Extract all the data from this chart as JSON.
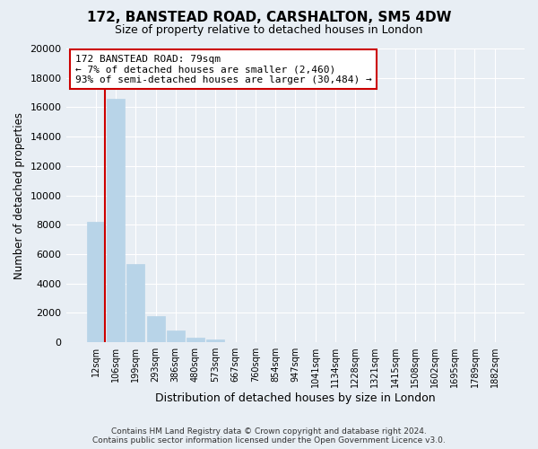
{
  "title": "172, BANSTEAD ROAD, CARSHALTON, SM5 4DW",
  "subtitle": "Size of property relative to detached houses in London",
  "xlabel": "Distribution of detached houses by size in London",
  "ylabel": "Number of detached properties",
  "bar_labels": [
    "12sqm",
    "106sqm",
    "199sqm",
    "293sqm",
    "386sqm",
    "480sqm",
    "573sqm",
    "667sqm",
    "760sqm",
    "854sqm",
    "947sqm",
    "1041sqm",
    "1134sqm",
    "1228sqm",
    "1321sqm",
    "1415sqm",
    "1508sqm",
    "1602sqm",
    "1695sqm",
    "1789sqm",
    "1882sqm"
  ],
  "bar_values": [
    8200,
    16600,
    5300,
    1800,
    800,
    300,
    200,
    0,
    0,
    0,
    0,
    0,
    0,
    0,
    0,
    0,
    0,
    0,
    0,
    0,
    0
  ],
  "bar_color": "#b8d4e8",
  "highlight_color": "#cc0000",
  "vline_x_index": 0.5,
  "ylim": [
    0,
    20000
  ],
  "yticks": [
    0,
    2000,
    4000,
    6000,
    8000,
    10000,
    12000,
    14000,
    16000,
    18000,
    20000
  ],
  "annotation_title": "172 BANSTEAD ROAD: 79sqm",
  "annotation_line1": "← 7% of detached houses are smaller (2,460)",
  "annotation_line2": "93% of semi-detached houses are larger (30,484) →",
  "annotation_box_color": "#ffffff",
  "annotation_box_edge_color": "#cc0000",
  "footer_line1": "Contains HM Land Registry data © Crown copyright and database right 2024.",
  "footer_line2": "Contains public sector information licensed under the Open Government Licence v3.0.",
  "background_color": "#e8eef4",
  "grid_color": "#ffffff"
}
